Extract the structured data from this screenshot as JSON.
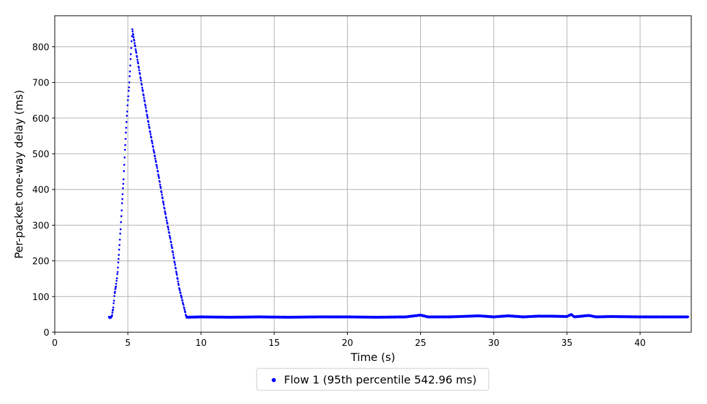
{
  "colors": {
    "series": "#0000ff",
    "grid": "#b0b0b0",
    "axis": "#000000",
    "background": "#ffffff"
  },
  "chart_data": {
    "type": "scatter",
    "title": "",
    "xlabel": "Time (s)",
    "ylabel": "Per-packet one-way delay (ms)",
    "xlim": [
      0,
      43.5
    ],
    "ylim": [
      0,
      887
    ],
    "xticks": [
      0,
      5,
      10,
      15,
      20,
      25,
      30,
      35,
      40
    ],
    "yticks": [
      0,
      100,
      200,
      300,
      400,
      500,
      600,
      700,
      800
    ],
    "grid": true,
    "legend_position": "bottom-center",
    "series": [
      {
        "name": "Flow 1 (95th percentile 542.96 ms)",
        "color": "#0000ff",
        "points": [
          [
            3.7,
            42
          ],
          [
            3.8,
            41
          ],
          [
            3.9,
            44
          ],
          [
            4.0,
            70
          ],
          [
            4.1,
            110
          ],
          [
            4.2,
            135
          ],
          [
            4.3,
            170
          ],
          [
            4.4,
            230
          ],
          [
            4.5,
            290
          ],
          [
            4.6,
            360
          ],
          [
            4.7,
            430
          ],
          [
            4.8,
            510
          ],
          [
            4.9,
            590
          ],
          [
            5.0,
            650
          ],
          [
            5.1,
            700
          ],
          [
            5.2,
            780
          ],
          [
            5.3,
            848
          ],
          [
            5.5,
            800
          ],
          [
            6.0,
            680
          ],
          [
            6.5,
            565
          ],
          [
            7.0,
            460
          ],
          [
            7.5,
            345
          ],
          [
            8.0,
            240
          ],
          [
            8.5,
            125
          ],
          [
            9.0,
            42
          ],
          [
            10.0,
            43
          ],
          [
            12.0,
            42
          ],
          [
            14.0,
            43
          ],
          [
            16.0,
            42
          ],
          [
            18.0,
            43
          ],
          [
            20.0,
            43
          ],
          [
            22.0,
            42
          ],
          [
            24.0,
            43
          ],
          [
            25.0,
            48
          ],
          [
            25.5,
            43
          ],
          [
            27.0,
            43
          ],
          [
            29.0,
            46
          ],
          [
            30.0,
            43
          ],
          [
            31.0,
            46
          ],
          [
            32.0,
            43
          ],
          [
            33.0,
            45
          ],
          [
            34.0,
            45
          ],
          [
            35.0,
            44
          ],
          [
            35.3,
            50
          ],
          [
            35.5,
            43
          ],
          [
            36.5,
            47
          ],
          [
            37.0,
            43
          ],
          [
            38.0,
            44
          ],
          [
            40.0,
            43
          ],
          [
            42.0,
            43
          ],
          [
            43.3,
            43
          ]
        ]
      }
    ]
  }
}
